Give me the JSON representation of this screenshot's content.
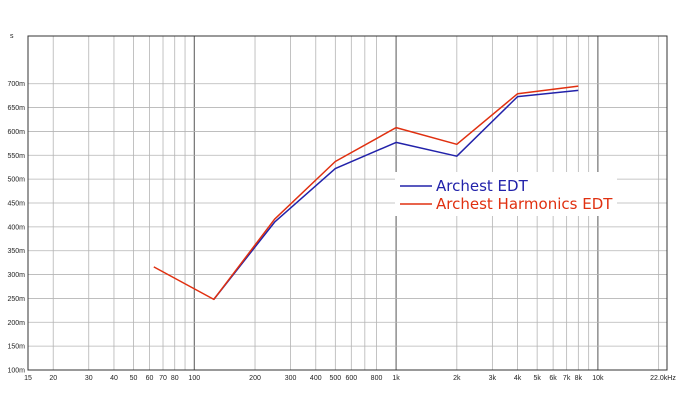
{
  "chart_data": {
    "type": "line",
    "xscale": "log",
    "xlim": [
      15,
      22000
    ],
    "ylim": [
      0.1,
      0.8
    ],
    "grid": true,
    "y_axis_unit": "s",
    "legend_placement": "right-middle",
    "x_ticks": [
      {
        "value": 15,
        "label": "15"
      },
      {
        "value": 20,
        "label": "20"
      },
      {
        "value": 30,
        "label": "30"
      },
      {
        "value": 40,
        "label": "40"
      },
      {
        "value": 50,
        "label": "50"
      },
      {
        "value": 60,
        "label": "60"
      },
      {
        "value": 70,
        "label": "70"
      },
      {
        "value": 80,
        "label": "80"
      },
      {
        "value": 100,
        "label": "100"
      },
      {
        "value": 200,
        "label": "200"
      },
      {
        "value": 300,
        "label": "300"
      },
      {
        "value": 400,
        "label": "400"
      },
      {
        "value": 500,
        "label": "500"
      },
      {
        "value": 600,
        "label": "600"
      },
      {
        "value": 800,
        "label": "800"
      },
      {
        "value": 1000,
        "label": "1k"
      },
      {
        "value": 2000,
        "label": "2k"
      },
      {
        "value": 3000,
        "label": "3k"
      },
      {
        "value": 4000,
        "label": "4k"
      },
      {
        "value": 5000,
        "label": "5k"
      },
      {
        "value": 6000,
        "label": "6k"
      },
      {
        "value": 7000,
        "label": "7k"
      },
      {
        "value": 8000,
        "label": "8k"
      },
      {
        "value": 10000,
        "label": "10k"
      },
      {
        "value": 22000,
        "label": "22.0kHz"
      }
    ],
    "x_minor_grid": [
      90,
      700,
      9000,
      20000
    ],
    "x_major_grid": [
      100,
      1000,
      10000
    ],
    "y_ticks": [
      {
        "value": 0.1,
        "label": "100m"
      },
      {
        "value": 0.15,
        "label": "150m"
      },
      {
        "value": 0.2,
        "label": "200m"
      },
      {
        "value": 0.25,
        "label": "250m"
      },
      {
        "value": 0.3,
        "label": "300m"
      },
      {
        "value": 0.35,
        "label": "350m"
      },
      {
        "value": 0.4,
        "label": "400m"
      },
      {
        "value": 0.45,
        "label": "450m"
      },
      {
        "value": 0.5,
        "label": "500m"
      },
      {
        "value": 0.55,
        "label": "550m"
      },
      {
        "value": 0.6,
        "label": "600m"
      },
      {
        "value": 0.65,
        "label": "650m"
      },
      {
        "value": 0.7,
        "label": "700m"
      }
    ],
    "series": [
      {
        "name": "Archest EDT",
        "color": "#2222aa",
        "x": [
          125,
          250,
          500,
          1000,
          2000,
          4000,
          8000
        ],
        "y": [
          0.248,
          0.41,
          0.522,
          0.577,
          0.548,
          0.673,
          0.686
        ]
      },
      {
        "name": "Archest Harmonics EDT",
        "color": "#e03010",
        "x": [
          63,
          125,
          250,
          500,
          1000,
          2000,
          4000,
          8000
        ],
        "y": [
          0.316,
          0.248,
          0.416,
          0.537,
          0.608,
          0.573,
          0.679,
          0.695
        ]
      }
    ]
  }
}
